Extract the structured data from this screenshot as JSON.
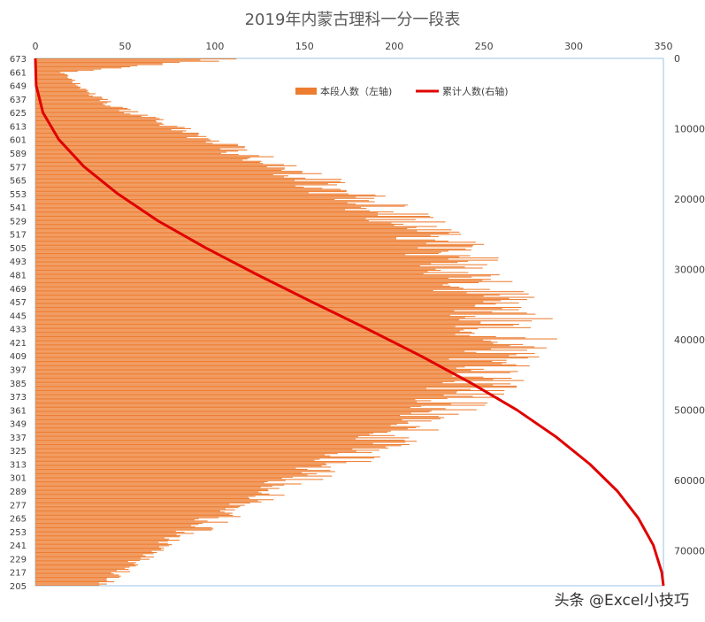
{
  "page_title": "2019年内蒙古理科一分一段表",
  "watermark": "头条 @Excel小技巧",
  "colors": {
    "bar": "#ED7D31",
    "line": "#E00000",
    "axis": "#BFBFBF",
    "plot_border": "#9DC3E6"
  },
  "chart_data": {
    "type": "bar",
    "orientation": "horizontal",
    "title": "2019年内蒙古理科一分一段表",
    "categories_range": [
      205,
      673
    ],
    "category_tick_labels": [
      "673",
      "661",
      "649",
      "637",
      "625",
      "613",
      "601",
      "589",
      "577",
      "565",
      "553",
      "541",
      "529",
      "517",
      "505",
      "493",
      "481",
      "469",
      "457",
      "445",
      "433",
      "421",
      "409",
      "397",
      "385",
      "373",
      "361",
      "349",
      "337",
      "325",
      "313",
      "301",
      "289",
      "277",
      "265",
      "253",
      "241",
      "229",
      "217",
      "205"
    ],
    "x_axis_top": {
      "min": 0,
      "max": 350,
      "ticks": [
        "0",
        "50",
        "100",
        "150",
        "200",
        "250",
        "300",
        "350"
      ]
    },
    "y_axis_right": {
      "min": 0,
      "max": 75000,
      "reversed": true,
      "ticks": [
        "0",
        "10000",
        "20000",
        "30000",
        "40000",
        "50000",
        "60000",
        "70000"
      ]
    },
    "legend": {
      "placement": "top-right"
    },
    "grid": false,
    "series": [
      {
        "name": "本段人数（左轴)",
        "kind": "bar",
        "axis": "top",
        "x": [
          673,
          661,
          649,
          637,
          625,
          613,
          601,
          589,
          577,
          565,
          553,
          541,
          529,
          517,
          505,
          493,
          481,
          469,
          457,
          445,
          433,
          421,
          409,
          397,
          385,
          373,
          361,
          349,
          337,
          325,
          313,
          301,
          289,
          277,
          265,
          253,
          241,
          229,
          217,
          205
        ],
        "values": [
          112,
          15,
          25,
          38,
          55,
          78,
          100,
          120,
          140,
          160,
          178,
          195,
          212,
          225,
          235,
          242,
          250,
          256,
          262,
          268,
          270,
          272,
          268,
          260,
          252,
          245,
          235,
          222,
          208,
          190,
          172,
          155,
          138,
          120,
          105,
          90,
          75,
          62,
          50,
          38
        ]
      },
      {
        "name": "累计人数(右轴)",
        "kind": "line",
        "axis": "right",
        "x": [
          673,
          649,
          625,
          601,
          577,
          553,
          529,
          505,
          481,
          457,
          433,
          409,
          385,
          361,
          337,
          313,
          289,
          265,
          241,
          217,
          205
        ],
        "values": [
          0,
          100,
          900,
          2800,
          5800,
          9800,
          14600,
          20300,
          26500,
          33000,
          39600,
          46000,
          52000,
          57500,
          62200,
          66200,
          69500,
          72000,
          73800,
          74800,
          75000
        ]
      }
    ]
  }
}
